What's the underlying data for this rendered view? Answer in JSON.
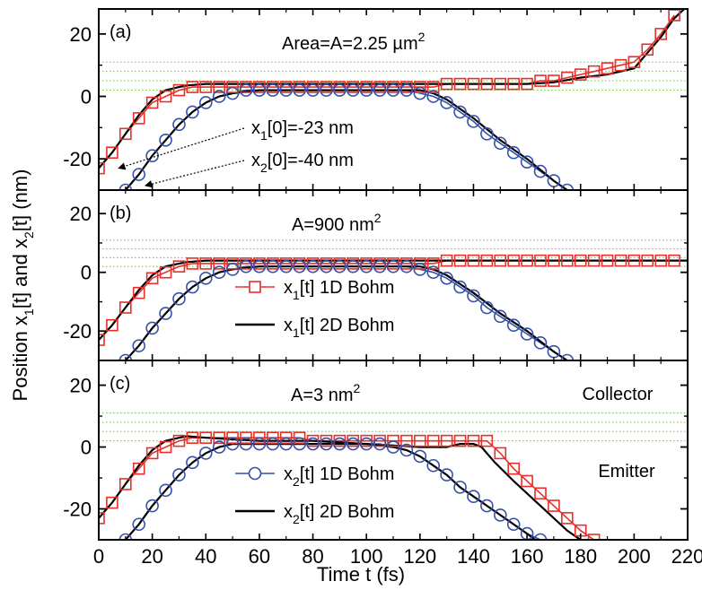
{
  "chart_data": {
    "type": "line",
    "ylabel": {
      "pre": "Position  x",
      "s1": "1",
      "mid": "[t]   and   x",
      "s2": "2",
      "post": "[t]    (nm)"
    },
    "xlabel": "Time   t  (fs)",
    "xlim": [
      0,
      220
    ],
    "x_ticks": [
      0,
      20,
      40,
      60,
      80,
      100,
      120,
      140,
      160,
      180,
      200,
      220
    ],
    "ylim": [
      -30,
      28
    ],
    "y_ticks": [
      -20,
      0,
      20
    ],
    "colors": {
      "x1_1d": "#e8302a",
      "x2_1d": "#3550a8",
      "bohm_2d": "#000000",
      "barrier": "#6fbf4a"
    },
    "barrier_lines_nm": [
      11,
      8,
      5,
      2
    ],
    "panels": [
      {
        "id": "a",
        "label": "(a)",
        "area_label": {
          "main": "Area=A=2.25 µm",
          "sup": "2"
        },
        "annotations": [
          {
            "main": "x",
            "sub": "1",
            "tail": "[0]=-23 nm",
            "target": [
              0,
              -23
            ]
          },
          {
            "main": "x",
            "sub": "2",
            "tail": "[0]=-40 nm",
            "target": [
              10,
              -28
            ]
          }
        ],
        "series": [
          {
            "key": "x1_1d",
            "marker": "square",
            "x": [
              0,
              5,
              10,
              15,
              20,
              25,
              30,
              35,
              40,
              45,
              50,
              55,
              60,
              65,
              70,
              75,
              80,
              85,
              90,
              95,
              100,
              105,
              110,
              115,
              120,
              125,
              130,
              135,
              140,
              145,
              150,
              155,
              160,
              165,
              170,
              175,
              180,
              185,
              190,
              195,
              200,
              205,
              210,
              215
            ],
            "y": [
              -23,
              -18,
              -12,
              -7,
              -2,
              0,
              2,
              3,
              3,
              3,
              3,
              3,
              3,
              3,
              3,
              3,
              3,
              3,
              3,
              3,
              3,
              3,
              3,
              3,
              3,
              3,
              4,
              4,
              4,
              4,
              4,
              4,
              4,
              5,
              5,
              6,
              7,
              8,
              9,
              10,
              11,
              15,
              20,
              26
            ]
          },
          {
            "key": "x1_2d",
            "x": [
              0,
              5,
              10,
              15,
              20,
              25,
              30,
              33,
              40,
              60,
              80,
              100,
              120,
              140,
              160,
              170,
              180,
              190,
              200,
              205,
              210,
              215,
              220
            ],
            "y": [
              -23,
              -18,
              -12,
              -6,
              -1,
              2,
              3,
              3.5,
              4,
              4,
              4,
              4,
              4,
              4,
              4,
              4.5,
              6,
              7,
              9,
              14,
              19,
              25,
              29
            ]
          },
          {
            "key": "x2_1d",
            "marker": "circle",
            "x": [
              10,
              15,
              20,
              25,
              30,
              35,
              40,
              45,
              50,
              55,
              60,
              65,
              70,
              75,
              80,
              85,
              90,
              95,
              100,
              105,
              110,
              115,
              120,
              125,
              130,
              135,
              140,
              145,
              150,
              155,
              160,
              165,
              170,
              175
            ],
            "y": [
              -30,
              -25,
              -19,
              -14,
              -9,
              -5,
              -2,
              0,
              1,
              2,
              2,
              2,
              2,
              2,
              2,
              2,
              2,
              2,
              2,
              2,
              2,
              2,
              1,
              0,
              -2,
              -5,
              -8,
              -12,
              -15,
              -18,
              -21,
              -24,
              -27,
              -30
            ]
          },
          {
            "key": "x2_2d",
            "x": [
              10,
              15,
              20,
              25,
              30,
              35,
              40,
              45,
              50,
              60,
              70,
              80,
              90,
              100,
              110,
              120,
              125,
              130,
              135,
              140,
              150,
              160,
              170,
              175
            ],
            "y": [
              -30,
              -25,
              -19,
              -14,
              -9,
              -5,
              -2,
              0,
              1,
              2,
              2,
              2,
              2,
              2,
              2,
              2,
              1,
              -1,
              -4,
              -7,
              -14,
              -20,
              -27,
              -30
            ]
          }
        ]
      },
      {
        "id": "b",
        "label": "(b)",
        "area_label": {
          "main": "A=900 nm",
          "sup": "2"
        },
        "legend": [
          {
            "main": "x",
            "sub": "1",
            "tail": "[t] 1D Bohm",
            "key": "x1_1d",
            "marker": "square"
          },
          {
            "main": "x",
            "sub": "1",
            "tail": "[t] 2D Bohm",
            "key": "bohm_2d",
            "marker": "none"
          }
        ],
        "series": [
          {
            "key": "x1_1d",
            "marker": "square",
            "x": [
              0,
              5,
              10,
              15,
              20,
              25,
              30,
              35,
              40,
              45,
              50,
              55,
              60,
              65,
              70,
              75,
              80,
              85,
              90,
              95,
              100,
              105,
              110,
              115,
              120,
              125,
              130,
              135,
              140,
              145,
              150,
              155,
              160,
              165,
              170,
              175,
              180,
              185,
              190,
              195,
              200,
              205,
              210,
              215
            ],
            "y": [
              -23,
              -18,
              -12,
              -7,
              -2,
              0,
              2,
              3,
              3,
              3,
              3,
              3,
              3,
              3,
              3,
              3,
              3,
              3,
              3,
              3,
              3,
              3,
              3,
              3,
              3,
              3,
              4,
              4,
              4,
              4,
              4,
              4,
              4,
              4,
              4,
              4,
              4,
              4,
              4,
              4,
              4,
              4,
              4,
              4
            ]
          },
          {
            "key": "x1_2d",
            "x": [
              0,
              5,
              10,
              15,
              20,
              25,
              30,
              33,
              40,
              60,
              80,
              100,
              120,
              140,
              160,
              180,
              200,
              220
            ],
            "y": [
              -23,
              -18,
              -12,
              -6,
              -1,
              2,
              3,
              3.5,
              4,
              4,
              4,
              4,
              4,
              4,
              4,
              4,
              4,
              4
            ]
          },
          {
            "key": "x2_1d",
            "marker": "circle",
            "x": [
              10,
              15,
              20,
              25,
              30,
              35,
              40,
              45,
              50,
              55,
              60,
              65,
              70,
              75,
              80,
              85,
              90,
              95,
              100,
              105,
              110,
              115,
              120,
              125,
              130,
              135,
              140,
              145,
              150,
              155,
              160,
              165,
              170,
              175
            ],
            "y": [
              -30,
              -25,
              -19,
              -14,
              -9,
              -5,
              -2,
              0,
              1,
              2,
              2,
              2,
              2,
              2,
              2,
              2,
              2,
              2,
              2,
              2,
              2,
              2,
              1,
              0,
              -2,
              -5,
              -8,
              -12,
              -15,
              -18,
              -21,
              -24,
              -27,
              -30
            ]
          },
          {
            "key": "x2_2d",
            "x": [
              10,
              15,
              20,
              25,
              30,
              35,
              40,
              45,
              50,
              60,
              70,
              80,
              90,
              100,
              110,
              120,
              125,
              130,
              135,
              140,
              150,
              160,
              170,
              175
            ],
            "y": [
              -30,
              -25,
              -19,
              -14,
              -9,
              -5,
              -2,
              0,
              1,
              2,
              2,
              2,
              2,
              2,
              2,
              2,
              1,
              -1,
              -4,
              -7,
              -14,
              -20,
              -27,
              -30
            ]
          }
        ]
      },
      {
        "id": "c",
        "label": "(c)",
        "area_label": {
          "main": "A=3 nm",
          "sup": "2"
        },
        "region_labels": {
          "collector": "Collector",
          "emitter": "Emitter"
        },
        "legend": [
          {
            "main": "x",
            "sub": "2",
            "tail": "[t] 1D Bohm",
            "key": "x2_1d",
            "marker": "circle"
          },
          {
            "main": "x",
            "sub": "2",
            "tail": "[t] 2D Bohm",
            "key": "bohm_2d",
            "marker": "none"
          }
        ],
        "series": [
          {
            "key": "x1_1d",
            "marker": "square",
            "x": [
              0,
              5,
              10,
              15,
              20,
              25,
              30,
              35,
              40,
              45,
              50,
              55,
              60,
              65,
              70,
              75,
              80,
              85,
              90,
              95,
              100,
              105,
              110,
              115,
              120,
              125,
              130,
              135,
              140,
              145,
              150,
              155,
              160,
              165,
              170,
              175,
              180,
              185
            ],
            "y": [
              -23,
              -18,
              -12,
              -7,
              -2,
              0,
              2,
              3,
              3,
              3,
              3,
              3,
              3,
              3,
              3,
              3,
              2,
              2,
              2,
              2,
              2,
              2,
              2,
              2,
              2,
              2,
              2,
              2,
              2,
              2,
              -2,
              -7,
              -11,
              -15,
              -19,
              -23,
              -27,
              -30
            ]
          },
          {
            "key": "x1_2d",
            "x": [
              0,
              5,
              10,
              15,
              20,
              25,
              30,
              33,
              40,
              60,
              80,
              100,
              110,
              120,
              130,
              135,
              140,
              143,
              148,
              155,
              165,
              175,
              180
            ],
            "y": [
              -23,
              -18,
              -12,
              -6,
              -1,
              2,
              3,
              3.5,
              3,
              2,
              2,
              1,
              0.5,
              0,
              0,
              1,
              1,
              0,
              -5,
              -11,
              -19,
              -27,
              -30
            ]
          },
          {
            "key": "x2_1d",
            "marker": "circle",
            "x": [
              10,
              15,
              20,
              25,
              30,
              35,
              40,
              45,
              50,
              55,
              60,
              65,
              70,
              75,
              80,
              85,
              90,
              95,
              100,
              105,
              110,
              115,
              120,
              125,
              130,
              135,
              140,
              145,
              150,
              155,
              160,
              165
            ],
            "y": [
              -30,
              -25,
              -19,
              -14,
              -9,
              -5,
              -2,
              0,
              1,
              1,
              1,
              1,
              1,
              1,
              1,
              1,
              1,
              1,
              1,
              1,
              0,
              -1,
              -3,
              -6,
              -9,
              -13,
              -16,
              -19,
              -22,
              -25,
              -28,
              -30
            ]
          },
          {
            "key": "x2_2d",
            "x": [
              10,
              15,
              20,
              25,
              30,
              35,
              40,
              45,
              50,
              60,
              70,
              80,
              90,
              100,
              110,
              115,
              120,
              125,
              130,
              135,
              140,
              150,
              160,
              163
            ],
            "y": [
              -30,
              -25,
              -19,
              -14,
              -9,
              -5,
              -2,
              0,
              1,
              1,
              1,
              1,
              1,
              1,
              0,
              -1,
              -3,
              -6,
              -9,
              -13,
              -16,
              -22,
              -28,
              -30
            ]
          }
        ]
      }
    ]
  }
}
